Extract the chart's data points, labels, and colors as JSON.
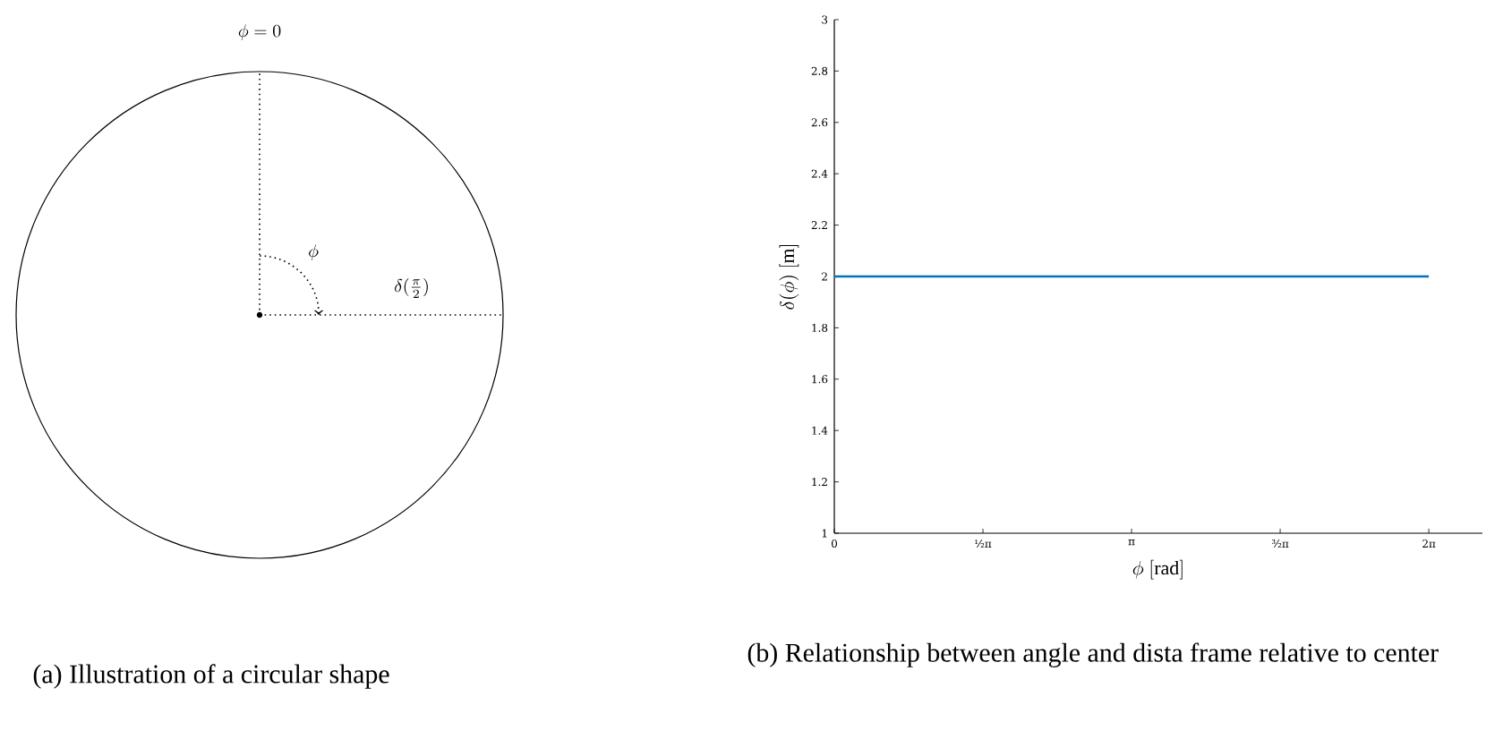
{
  "chart_data": [
    {
      "type": "other",
      "annotations": [
        "\\phi = 0",
        "\\phi",
        "\\delta(\\tfrac{\\pi}{2})",
        "(a) Illustration of a circular shape"
      ]
    },
    {
      "type": "line",
      "x": [
        0,
        6.2832
      ],
      "values": [
        2,
        2
      ],
      "color": "#0072bd",
      "xlim": [
        0,
        6.85
      ],
      "ylim": [
        1,
        3
      ],
      "xticks": [
        0,
        {
          "value": 1.5708,
          "label": "½π"
        },
        {
          "value": 3.1416,
          "label": "π"
        },
        {
          "value": 4.7124,
          "label": "³⁄₂π"
        },
        {
          "value": 6.2832,
          "label": "2π"
        }
      ],
      "yticks": [
        1,
        1.2,
        1.4,
        1.6,
        1.8,
        2,
        2.2,
        2.4,
        2.6,
        2.8,
        3
      ],
      "xlabel": "\\phi\\ [\\mathrm{rad}]",
      "ylabel": "\\delta(\\phi)\\ [\\mathrm{m}]",
      "grid": false,
      "marker": "none",
      "line_style": "solid",
      "annotations": [
        "(b) Relationship between angle and dista frame relative to center"
      ]
    }
  ]
}
